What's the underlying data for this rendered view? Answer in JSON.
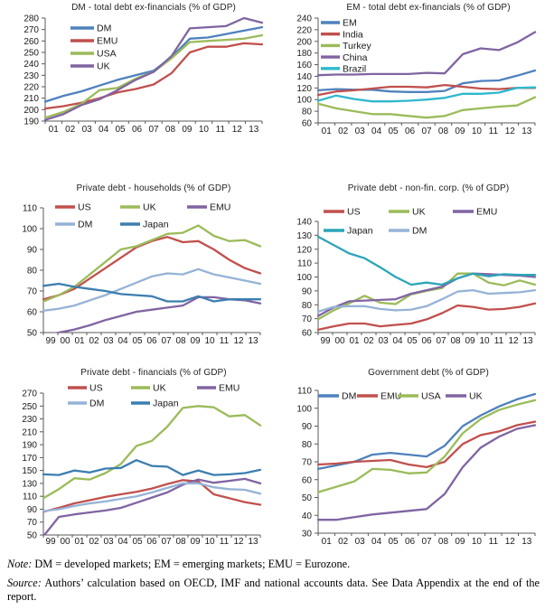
{
  "notes": {
    "note_label": "Note:",
    "note_text": "DM = developed markets; EM = emerging markets; EMU = Eurozone.",
    "source_label": "Source:",
    "source_text": "Authors’ calculation based on OECD, IMF and national accounts data. See Data Appendix at the end of the report."
  },
  "chart_data": [
    {
      "type": "line",
      "title": "DM - total debt ex-financials (% of GDP)",
      "x": [
        "01",
        "02",
        "03",
        "04",
        "05",
        "06",
        "07",
        "08",
        "09",
        "10",
        "11",
        "12",
        "13"
      ],
      "ylim": [
        190,
        280
      ],
      "y_step": 10,
      "grid": false,
      "legend_layout": "column-top-left",
      "series": [
        {
          "name": "DM",
          "color": "#4F81BD",
          "values": [
            207,
            212,
            216,
            221,
            226,
            230,
            234,
            246,
            262,
            263,
            266,
            269,
            272
          ]
        },
        {
          "name": "EMU",
          "color": "#C0504D",
          "values": [
            201,
            203,
            206,
            210,
            215,
            218,
            222,
            232,
            250,
            255,
            255,
            258,
            257
          ]
        },
        {
          "name": "USA",
          "color": "#9BBB59",
          "values": [
            193,
            198,
            205,
            217,
            219,
            227,
            233,
            245,
            259,
            260,
            261,
            262,
            265
          ]
        },
        {
          "name": "UK",
          "color": "#8064A2",
          "values": [
            191,
            196,
            204,
            209,
            217,
            226,
            233,
            247,
            271,
            272,
            273,
            280,
            276
          ]
        }
      ]
    },
    {
      "type": "line",
      "title": "EM - total debt ex-financials (% of GDP)",
      "x": [
        "01",
        "02",
        "03",
        "04",
        "05",
        "06",
        "07",
        "08",
        "09",
        "10",
        "11",
        "12",
        "13"
      ],
      "ylim": [
        60,
        240
      ],
      "y_step": 20,
      "grid": false,
      "legend_layout": "column-top-left",
      "series": [
        {
          "name": "EM",
          "color": "#4F81BD",
          "values": [
            116,
            118,
            117,
            117,
            114,
            113,
            113,
            115,
            128,
            132,
            133,
            141,
            150
          ]
        },
        {
          "name": "India",
          "color": "#C0504D",
          "values": [
            108,
            114,
            116,
            119,
            122,
            122,
            121,
            125,
            122,
            119,
            118,
            120,
            120
          ]
        },
        {
          "name": "Turkey",
          "color": "#9BBB59",
          "values": [
            93,
            85,
            80,
            75,
            75,
            72,
            69,
            72,
            82,
            85,
            88,
            90,
            104
          ]
        },
        {
          "name": "China",
          "color": "#8064A2",
          "values": [
            142,
            143,
            143,
            144,
            144,
            144,
            146,
            145,
            178,
            188,
            185,
            198,
            216
          ]
        },
        {
          "name": "Brazil",
          "color": "#2FB8CE",
          "values": [
            98,
            107,
            101,
            97,
            97,
            98,
            100,
            103,
            110,
            110,
            112,
            120,
            121
          ]
        }
      ]
    },
    {
      "type": "line",
      "title": "Private debt - households (% of GDP)",
      "x": [
        "99",
        "00",
        "01",
        "02",
        "03",
        "04",
        "05",
        "06",
        "07",
        "08",
        "09",
        "10",
        "11",
        "12",
        "13"
      ],
      "ylim": [
        50,
        110
      ],
      "y_step": 10,
      "grid": false,
      "legend_layout": "grid-3col-top",
      "series": [
        {
          "name": "US",
          "color": "#C0504D",
          "values": [
            66,
            68,
            71,
            76,
            81,
            86,
            91,
            94,
            96,
            93.5,
            94,
            90,
            85,
            81,
            78.5
          ]
        },
        {
          "name": "UK",
          "color": "#9BBB59",
          "values": [
            65,
            68,
            72,
            78,
            84,
            90,
            91.5,
            94.5,
            97.5,
            98,
            101.5,
            96.5,
            94,
            94.5,
            91.5
          ]
        },
        {
          "name": "EMU",
          "color": "#8064A2",
          "values": [
            48.5,
            50,
            51.5,
            53.5,
            56,
            58,
            60,
            61,
            62,
            63,
            67,
            67,
            66,
            65.5,
            64
          ]
        },
        {
          "name": "DM",
          "color": "#95B3D7",
          "values": [
            60.5,
            61.5,
            63,
            65.5,
            68,
            71,
            74,
            77,
            78.5,
            78,
            80.5,
            78,
            76.5,
            75,
            73.5
          ]
        },
        {
          "name": "Japan",
          "color": "#3C7EB0",
          "values": [
            72.5,
            73.5,
            72,
            71,
            70,
            68.5,
            68,
            67.5,
            65,
            65,
            67.5,
            65,
            66,
            66,
            66
          ]
        }
      ]
    },
    {
      "type": "line",
      "title": "Private debt - non-fin. corp. (% of GDP)",
      "x": [
        "99",
        "00",
        "01",
        "02",
        "03",
        "04",
        "05",
        "06",
        "07",
        "08",
        "09",
        "10",
        "11",
        "12",
        "13"
      ],
      "ylim": [
        60,
        140
      ],
      "y_step": 10,
      "grid": false,
      "legend_layout": "grid-3col-top",
      "series": [
        {
          "name": "US",
          "color": "#C0504D",
          "values": [
            62,
            64.5,
            66.5,
            66.5,
            64.5,
            65.5,
            66.5,
            69.5,
            74,
            79.5,
            78.5,
            76.5,
            77,
            78.5,
            81
          ]
        },
        {
          "name": "UK",
          "color": "#9BBB59",
          "values": [
            69.5,
            76,
            81,
            86.5,
            81.5,
            80.5,
            87.5,
            90,
            92,
            102.5,
            102.5,
            96,
            94,
            97.5,
            94.5
          ]
        },
        {
          "name": "EMU",
          "color": "#8064A2",
          "values": [
            72,
            78,
            82.5,
            83,
            83.5,
            84,
            88,
            90.5,
            93,
            99,
            102.5,
            102,
            101.5,
            101,
            100
          ]
        },
        {
          "name": "Japan",
          "color": "#2BA5B8",
          "values": [
            129,
            123,
            117,
            113.5,
            107,
            100,
            94.5,
            96,
            94.5,
            99,
            102.5,
            100.5,
            102,
            101.5,
            101.5
          ]
        },
        {
          "name": "DM",
          "color": "#95B3D7",
          "values": [
            75,
            78.5,
            79,
            79,
            77,
            76,
            76.5,
            79,
            84,
            89.5,
            90.5,
            88,
            88.5,
            89,
            90.5
          ]
        }
      ]
    },
    {
      "type": "line",
      "title": "Private debt - financials (% of GDP)",
      "x": [
        "99",
        "00",
        "01",
        "02",
        "03",
        "04",
        "05",
        "06",
        "07",
        "08",
        "09",
        "10",
        "11",
        "12",
        "13"
      ],
      "ylim": [
        50,
        270
      ],
      "y_step": 20,
      "grid": false,
      "legend_layout": "grid-3col-top",
      "series": [
        {
          "name": "US",
          "color": "#C0504D",
          "values": [
            86,
            92,
            99,
            104,
            109,
            113,
            117,
            122,
            129,
            135,
            133,
            113,
            107,
            101,
            97
          ]
        },
        {
          "name": "UK",
          "color": "#9BBB59",
          "values": [
            107,
            121,
            138,
            136,
            146,
            160,
            188,
            196,
            218,
            247,
            250,
            248,
            234,
            236,
            220
          ]
        },
        {
          "name": "EMU",
          "color": "#8064A2",
          "values": [
            48,
            78,
            82,
            85,
            88,
            92,
            100,
            108,
            116,
            128,
            136,
            131,
            134,
            137,
            130
          ]
        },
        {
          "name": "DM",
          "color": "#95B3D7",
          "values": [
            87,
            90,
            95,
            99,
            102,
            106,
            110,
            116,
            123,
            130,
            130,
            124,
            121,
            120,
            114
          ]
        },
        {
          "name": "Japan",
          "color": "#3C7EB0",
          "values": [
            144,
            143,
            150,
            147,
            153,
            154,
            166,
            157,
            156,
            143,
            150,
            143,
            144,
            146,
            151
          ]
        }
      ]
    },
    {
      "type": "line",
      "title": "Government debt (% of GDP)",
      "x": [
        "01",
        "02",
        "03",
        "04",
        "05",
        "06",
        "07",
        "08",
        "09",
        "10",
        "11",
        "12",
        "13"
      ],
      "ylim": [
        30,
        110
      ],
      "y_step": 10,
      "grid": false,
      "legend_layout": "row-top",
      "series": [
        {
          "name": "DM",
          "color": "#4F81BD",
          "values": [
            66,
            68,
            70,
            74,
            75,
            74,
            73,
            79,
            90,
            96,
            101,
            105,
            108
          ]
        },
        {
          "name": "EMU",
          "color": "#C0504D",
          "values": [
            68.5,
            69,
            70,
            70.5,
            71,
            68.5,
            67,
            70,
            80,
            85,
            87,
            90.5,
            92.5
          ]
        },
        {
          "name": "USA",
          "color": "#9BBB59",
          "values": [
            53,
            56,
            59,
            66,
            65.5,
            63.5,
            64,
            73,
            86,
            94,
            99,
            102,
            104.5
          ]
        },
        {
          "name": "UK",
          "color": "#8064A2",
          "values": [
            37.5,
            37.5,
            39,
            40.5,
            41.5,
            42.5,
            43.5,
            52,
            67,
            78,
            84,
            88.5,
            90.5
          ]
        }
      ]
    }
  ]
}
